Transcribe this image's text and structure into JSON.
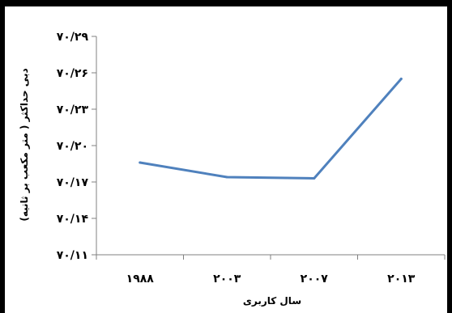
{
  "chart_data": {
    "type": "line",
    "categories": [
      "۱۹۸۸",
      "۲۰۰۳",
      "۲۰۰۷",
      "۲۰۱۳"
    ],
    "series": [
      {
        "values": [
          70.186,
          70.174,
          70.173,
          70.255
        ]
      }
    ],
    "y_ticks": [
      "۷۰/۱۱",
      "۷۰/۱۴",
      "۷۰/۱۷",
      "۷۰/۲۰",
      "۷۰/۲۳",
      "۷۰/۲۶",
      "۷۰/۲۹"
    ],
    "ylim": [
      70.11,
      70.29
    ],
    "xlabel": "سال کاربری",
    "ylabel": "دبی حداکثر ( متر مکعب بر ثانیه)",
    "grid": false,
    "line_color": "#4F81BD"
  }
}
